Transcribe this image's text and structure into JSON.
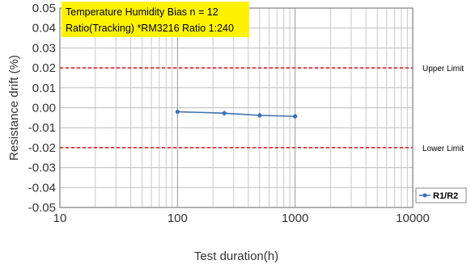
{
  "chart_data": {
    "type": "line",
    "title_lines": [
      "Temperature Humidity Bias  n = 12",
      "Ratio(Tracking) *RM3216 Ratio 1:240"
    ],
    "xlabel": "Test duration(h)",
    "ylabel": "Resistance drift (%)",
    "x_scale": "log",
    "xlim": [
      10,
      10000
    ],
    "ylim": [
      -0.05,
      0.05
    ],
    "x_ticks": [
      10,
      100,
      1000,
      10000
    ],
    "x_tick_labels": [
      "10",
      "100",
      "1000",
      "10000"
    ],
    "y_ticks": [
      0.05,
      0.04,
      0.03,
      0.02,
      0.01,
      0.0,
      -0.01,
      -0.02,
      -0.03,
      -0.04,
      -0.05
    ],
    "y_tick_labels": [
      "0.05",
      "0.04",
      "0.03",
      "0.02",
      "0.01",
      "0.00",
      "-0.01",
      "-0.02",
      "-0.03",
      "-0.04",
      "-0.05"
    ],
    "grid": true,
    "legend_position": "bottom-right",
    "series": [
      {
        "name": "R1/R2",
        "color": "#3f6fb5",
        "x": [
          100,
          250,
          500,
          1000
        ],
        "y": [
          -0.002,
          -0.0027,
          -0.0038,
          -0.0043
        ],
        "error_low": [
          -0.0035,
          -0.0042,
          -0.0052,
          -0.0057
        ],
        "error_high": [
          -0.0005,
          -0.0012,
          -0.0024,
          -0.0029
        ]
      }
    ],
    "reference_lines": [
      {
        "label": "Upper Limit",
        "y": 0.02,
        "color": "#e03030"
      },
      {
        "label": "Lower Limit",
        "y": -0.02,
        "color": "#e03030"
      }
    ],
    "title_box_color": "#fff200"
  }
}
